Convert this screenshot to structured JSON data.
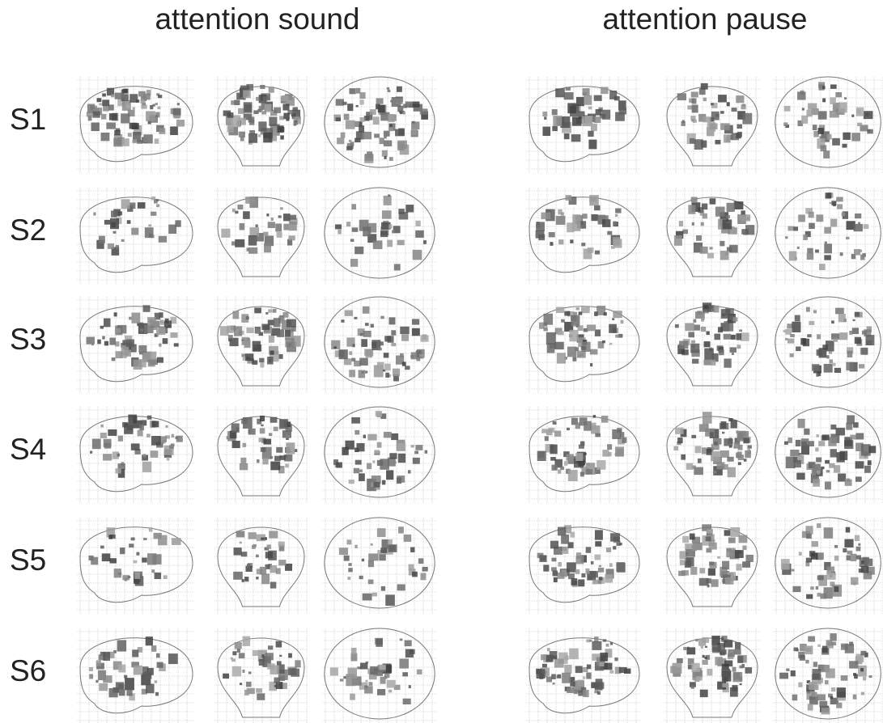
{
  "columns": [
    "attention sound",
    "attention pause"
  ],
  "rows": [
    "S1",
    "S2",
    "S3",
    "S4",
    "S5",
    "S6"
  ]
}
